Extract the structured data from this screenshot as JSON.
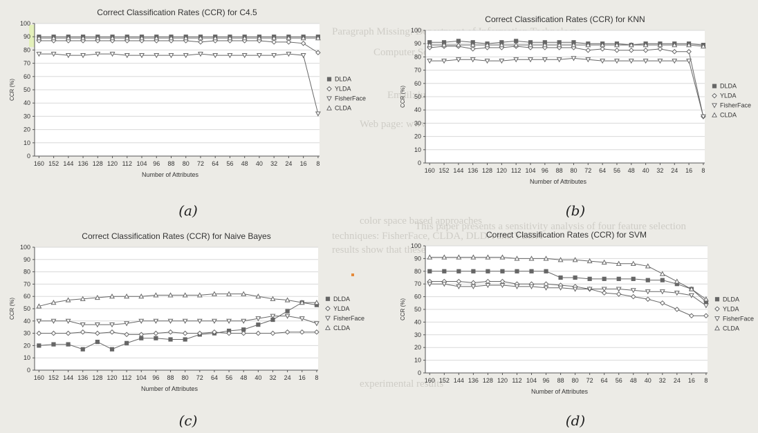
{
  "captions": [
    "(a)",
    "(b)",
    "(c)",
    "(d)"
  ],
  "background_text": [
    "Paragraph Missing: Department of Information Technology",
    "Computer Science Dept",
    "Email: junior@usp.br",
    "Web page: www.ppgia.pucpr.br",
    "This paper presents a sensitivity analysis of four feature selection",
    "techniques: FisherFace, CLDA, DLDA and YLDA",
    "results show that these techniques affect classifiers",
    "color space based approaches",
    "experimental results"
  ],
  "colors": {
    "background": "#ecebe6",
    "plot_bg": "#ffffff",
    "axis": "#555555",
    "grid": "#d8d8d8",
    "series": "#666666",
    "text": "#333333"
  },
  "chart_data": [
    {
      "type": "line",
      "title": "Correct Classification Rates (CCR) for C4.5",
      "xlabel": "Number of Attributes",
      "ylabel": "CCR (%)",
      "ylim": [
        0,
        100
      ],
      "yticks": [
        0,
        10,
        20,
        30,
        40,
        50,
        60,
        70,
        80,
        90,
        100
      ],
      "categories": [
        "160",
        "152",
        "144",
        "136",
        "128",
        "120",
        "112",
        "104",
        "96",
        "88",
        "80",
        "72",
        "64",
        "56",
        "48",
        "40",
        "32",
        "24",
        "16",
        "8"
      ],
      "legend_position": "right",
      "series": [
        {
          "name": "DLDA",
          "marker": "square",
          "values": [
            90,
            90,
            90,
            90,
            90,
            90,
            90,
            90,
            90,
            90,
            90,
            90,
            90,
            90,
            90,
            90,
            90,
            90,
            90,
            90
          ]
        },
        {
          "name": "YLDA",
          "marker": "diamond",
          "values": [
            87,
            87,
            87,
            87,
            87,
            87,
            87,
            87,
            87,
            87,
            87,
            86,
            87,
            87,
            87,
            87,
            86,
            86,
            85,
            78
          ]
        },
        {
          "name": "FisherFace",
          "marker": "triangle-down",
          "values": [
            77,
            77,
            76,
            76,
            77,
            77,
            76,
            76,
            76,
            76,
            76,
            77,
            76,
            76,
            76,
            76,
            76,
            77,
            76,
            32
          ]
        },
        {
          "name": "CLDA",
          "marker": "triangle-up",
          "values": [
            89,
            89,
            89,
            89,
            89,
            89,
            89,
            89,
            89,
            89,
            89,
            89,
            89,
            89,
            89,
            89,
            89,
            89,
            89,
            89
          ]
        }
      ]
    },
    {
      "type": "line",
      "title": "Correct Classification Rates (CCR) for KNN",
      "xlabel": "Number of Attributes",
      "ylabel": "CCR (%)",
      "ylim": [
        0,
        100
      ],
      "yticks": [
        0,
        10,
        20,
        30,
        40,
        50,
        60,
        70,
        80,
        90,
        100
      ],
      "categories": [
        "160",
        "152",
        "144",
        "136",
        "128",
        "120",
        "112",
        "104",
        "96",
        "88",
        "80",
        "72",
        "64",
        "56",
        "48",
        "40",
        "32",
        "24",
        "16",
        "8"
      ],
      "legend_position": "right",
      "series": [
        {
          "name": "DLDA",
          "marker": "square",
          "values": [
            91,
            91,
            92,
            91,
            90,
            91,
            92,
            91,
            91,
            91,
            91,
            90,
            90,
            90,
            89,
            90,
            90,
            90,
            90,
            89
          ]
        },
        {
          "name": "YLDA",
          "marker": "diamond",
          "values": [
            87,
            88,
            88,
            86,
            87,
            87,
            88,
            87,
            87,
            87,
            87,
            85,
            86,
            85,
            85,
            85,
            86,
            84,
            84,
            35
          ]
        },
        {
          "name": "FisherFace",
          "marker": "triangle-down",
          "values": [
            77,
            77,
            78,
            78,
            77,
            77,
            78,
            78,
            78,
            78,
            79,
            78,
            77,
            77,
            77,
            77,
            77,
            77,
            77,
            35
          ]
        },
        {
          "name": "CLDA",
          "marker": "triangle-up",
          "values": [
            89,
            89,
            89,
            89,
            89,
            89,
            89,
            89,
            89,
            89,
            89,
            89,
            89,
            89,
            89,
            89,
            89,
            89,
            89,
            88
          ]
        }
      ]
    },
    {
      "type": "line",
      "title": "Correct Classification Rates (CCR) for Naive Bayes",
      "xlabel": "Number of Attributes",
      "ylabel": "CCR (%)",
      "ylim": [
        0,
        100
      ],
      "yticks": [
        0,
        10,
        20,
        30,
        40,
        50,
        60,
        70,
        80,
        90,
        100
      ],
      "categories": [
        "160",
        "152",
        "144",
        "136",
        "128",
        "120",
        "112",
        "104",
        "96",
        "88",
        "80",
        "72",
        "64",
        "56",
        "48",
        "40",
        "32",
        "24",
        "16",
        "8"
      ],
      "legend_position": "right",
      "series": [
        {
          "name": "DLDA",
          "marker": "square",
          "values": [
            20,
            21,
            21,
            17,
            23,
            17,
            22,
            26,
            26,
            25,
            25,
            29,
            30,
            32,
            33,
            37,
            41,
            48,
            55,
            53
          ]
        },
        {
          "name": "YLDA",
          "marker": "diamond",
          "values": [
            30,
            30,
            30,
            31,
            30,
            31,
            29,
            29,
            30,
            31,
            30,
            30,
            31,
            30,
            30,
            30,
            30,
            31,
            31,
            31
          ]
        },
        {
          "name": "FisherFace",
          "marker": "triangle-down",
          "values": [
            40,
            40,
            40,
            37,
            37,
            37,
            38,
            40,
            40,
            40,
            40,
            40,
            40,
            40,
            40,
            42,
            44,
            44,
            42,
            38
          ]
        },
        {
          "name": "CLDA",
          "marker": "triangle-up",
          "values": [
            52,
            55,
            57,
            58,
            59,
            60,
            60,
            60,
            61,
            61,
            61,
            61,
            62,
            62,
            62,
            60,
            58,
            57,
            55,
            55
          ]
        }
      ]
    },
    {
      "type": "line",
      "title": "Correct Classification Rates (CCR) for SVM",
      "xlabel": "Number of Attributes",
      "ylabel": "CCR (%)",
      "ylim": [
        0,
        100
      ],
      "yticks": [
        0,
        10,
        20,
        30,
        40,
        50,
        60,
        70,
        80,
        90,
        100
      ],
      "categories": [
        "160",
        "152",
        "144",
        "136",
        "128",
        "120",
        "112",
        "104",
        "96",
        "88",
        "80",
        "72",
        "64",
        "56",
        "48",
        "40",
        "32",
        "24",
        "16",
        "8"
      ],
      "legend_position": "right",
      "series": [
        {
          "name": "DLDA",
          "marker": "square",
          "values": [
            80,
            80,
            80,
            80,
            80,
            80,
            80,
            80,
            80,
            75,
            75,
            74,
            74,
            74,
            74,
            73,
            73,
            70,
            66,
            56
          ]
        },
        {
          "name": "YLDA",
          "marker": "diamond",
          "values": [
            72,
            72,
            72,
            71,
            72,
            72,
            70,
            70,
            70,
            69,
            68,
            66,
            63,
            62,
            60,
            58,
            55,
            50,
            45,
            45
          ]
        },
        {
          "name": "FisherFace",
          "marker": "triangle-down",
          "values": [
            70,
            70,
            68,
            68,
            69,
            69,
            68,
            68,
            67,
            67,
            66,
            66,
            66,
            66,
            65,
            64,
            64,
            63,
            61,
            53
          ]
        },
        {
          "name": "CLDA",
          "marker": "triangle-up",
          "values": [
            91,
            91,
            91,
            91,
            91,
            91,
            90,
            90,
            90,
            89,
            89,
            88,
            87,
            86,
            86,
            84,
            78,
            72,
            66,
            58
          ]
        }
      ]
    }
  ]
}
